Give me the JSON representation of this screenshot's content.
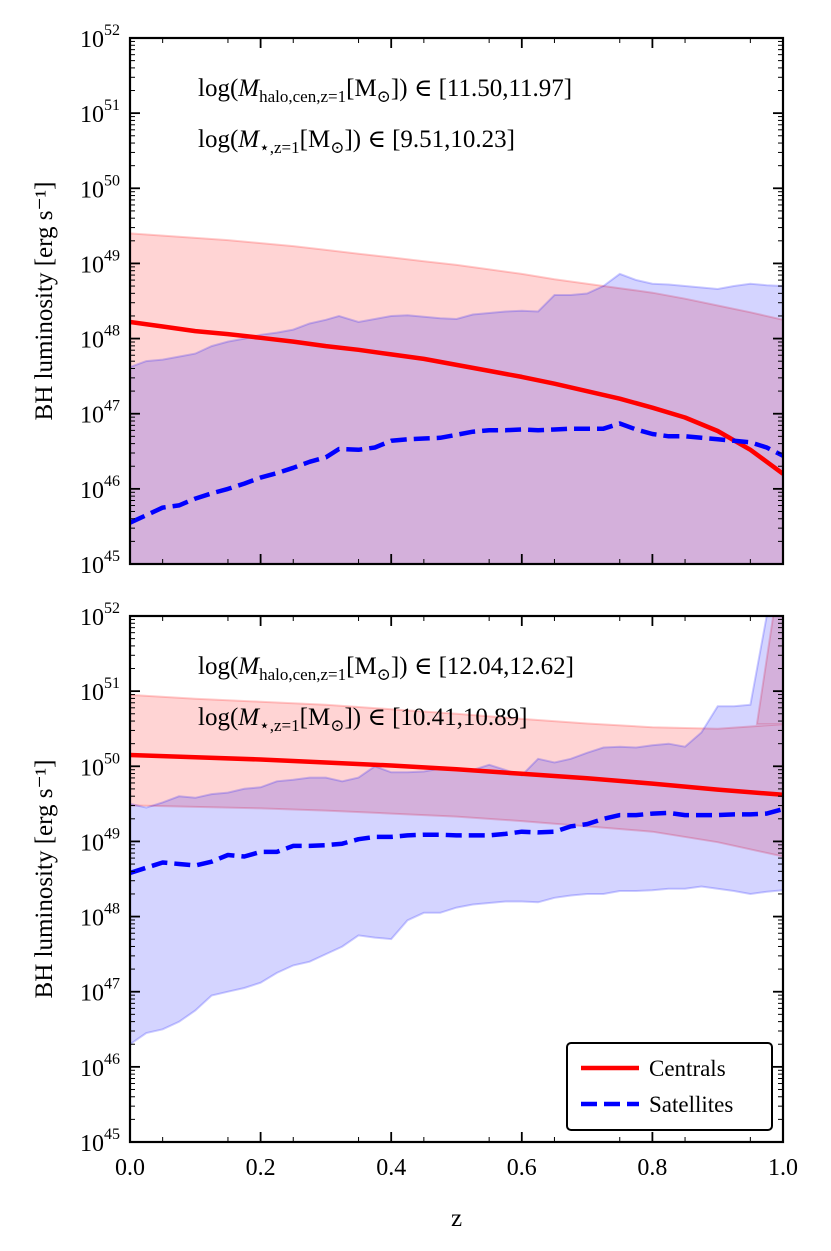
{
  "chart_data": [
    {
      "type": "area",
      "panel": "top",
      "ylabel": "BH luminosity [erg s⁻¹]",
      "xlabel": "",
      "xlim": [
        0.0,
        1.0
      ],
      "ylim_log10": [
        45,
        52
      ],
      "yscale": "log",
      "y_tick_labels": [
        {
          "base": "10",
          "exp": "45"
        },
        {
          "base": "10",
          "exp": "46"
        },
        {
          "base": "10",
          "exp": "47"
        },
        {
          "base": "10",
          "exp": "48"
        },
        {
          "base": "10",
          "exp": "49"
        },
        {
          "base": "10",
          "exp": "50"
        },
        {
          "base": "10",
          "exp": "51"
        },
        {
          "base": "10",
          "exp": "52"
        }
      ],
      "annotations": [
        {
          "prefix": "log(",
          "var": "M",
          "sub": "halo,cen,z=1",
          "unit": "M",
          "unit_sub": "⊙",
          "suffix": ") ∈ [11.50,11.97]"
        },
        {
          "prefix": "log(",
          "var": "M",
          "sub": "⋆,z=1",
          "unit": "M",
          "unit_sub": "⊙",
          "suffix": ") ∈ [9.51,10.23]"
        }
      ],
      "series": [
        {
          "name": "Centrals",
          "color": "#ff0000",
          "style": "solid",
          "x": [
            0,
            0.05,
            0.1,
            0.15,
            0.2,
            0.25,
            0.3,
            0.35,
            0.4,
            0.45,
            0.5,
            0.55,
            0.6,
            0.65,
            0.7,
            0.75,
            0.8,
            0.85,
            0.9,
            0.95,
            1.0
          ],
          "log10_y": [
            48.22,
            48.16,
            48.1,
            48.06,
            48.01,
            47.96,
            47.9,
            47.85,
            47.79,
            47.73,
            47.65,
            47.57,
            47.49,
            47.4,
            47.3,
            47.2,
            47.08,
            46.95,
            46.77,
            46.52,
            46.2
          ],
          "band_lower_log10": [
            45,
            45,
            45,
            45,
            45,
            45,
            45,
            45,
            45,
            45,
            45,
            45,
            45,
            45,
            45,
            45,
            45,
            45,
            45,
            45,
            45
          ],
          "band_upper_log10": [
            49.4,
            49.37,
            49.34,
            49.31,
            49.27,
            49.23,
            49.18,
            49.13,
            49.08,
            49.03,
            48.98,
            48.92,
            48.86,
            48.79,
            48.73,
            48.67,
            48.61,
            48.53,
            48.44,
            48.35,
            48.25
          ],
          "band_color": "#ff0000"
        },
        {
          "name": "Satellites",
          "color": "#0000ff",
          "style": "dashed",
          "x": [
            0,
            0.025,
            0.05,
            0.075,
            0.1,
            0.125,
            0.15,
            0.175,
            0.2,
            0.225,
            0.25,
            0.275,
            0.3,
            0.32,
            0.35,
            0.375,
            0.4,
            0.425,
            0.45,
            0.475,
            0.5,
            0.525,
            0.55,
            0.575,
            0.6,
            0.625,
            0.65,
            0.675,
            0.7,
            0.725,
            0.75,
            0.775,
            0.8,
            0.825,
            0.85,
            0.875,
            0.9,
            0.925,
            0.95,
            0.975,
            1.0
          ],
          "log10_y": [
            45.55,
            45.65,
            45.75,
            45.78,
            45.87,
            45.94,
            46.0,
            46.07,
            46.15,
            46.21,
            46.28,
            46.36,
            46.42,
            46.53,
            46.52,
            46.55,
            46.64,
            46.66,
            46.67,
            46.68,
            46.72,
            46.76,
            46.78,
            46.78,
            46.79,
            46.78,
            46.79,
            46.8,
            46.8,
            46.8,
            46.87,
            46.79,
            46.73,
            46.7,
            46.7,
            46.68,
            46.66,
            46.64,
            46.62,
            46.55,
            46.44
          ],
          "band_lower_log10": [
            45,
            45,
            45,
            45,
            45,
            45,
            45,
            45,
            45,
            45,
            45,
            45,
            45,
            45,
            45,
            45,
            45,
            45,
            45,
            45,
            45,
            45,
            45,
            45,
            45,
            45,
            45,
            45,
            45,
            45,
            45,
            45,
            45,
            45,
            45,
            45,
            45,
            45,
            45,
            45,
            45
          ],
          "band_upper_log10": [
            47.62,
            47.7,
            47.72,
            47.76,
            47.8,
            47.9,
            47.96,
            48.0,
            48.05,
            48.08,
            48.12,
            48.2,
            48.25,
            48.3,
            48.22,
            48.26,
            48.3,
            48.31,
            48.29,
            48.27,
            48.26,
            48.32,
            48.34,
            48.36,
            48.37,
            48.36,
            48.58,
            48.58,
            48.6,
            48.7,
            48.86,
            48.78,
            48.73,
            48.72,
            48.7,
            48.68,
            48.66,
            48.7,
            48.73,
            48.71,
            48.7
          ],
          "band_color": "#0000ff"
        }
      ]
    },
    {
      "type": "area",
      "panel": "bottom",
      "ylabel": "BH luminosity [erg s⁻¹]",
      "xlabel": "z",
      "xlim": [
        0.0,
        1.0
      ],
      "ylim_log10": [
        45,
        52
      ],
      "yscale": "log",
      "x_ticks": [
        "0.0",
        "0.2",
        "0.4",
        "0.6",
        "0.8",
        "1.0"
      ],
      "y_tick_labels": [
        {
          "base": "10",
          "exp": "45"
        },
        {
          "base": "10",
          "exp": "46"
        },
        {
          "base": "10",
          "exp": "47"
        },
        {
          "base": "10",
          "exp": "48"
        },
        {
          "base": "10",
          "exp": "49"
        },
        {
          "base": "10",
          "exp": "50"
        },
        {
          "base": "10",
          "exp": "51"
        },
        {
          "base": "10",
          "exp": "52"
        }
      ],
      "annotations": [
        {
          "prefix": "log(",
          "var": "M",
          "sub": "halo,cen,z=1",
          "unit": "M",
          "unit_sub": "⊙",
          "suffix": ") ∈ [12.04,12.62]"
        },
        {
          "prefix": "log(",
          "var": "M",
          "sub": "⋆,z=1",
          "unit": "M",
          "unit_sub": "⊙",
          "suffix": ") ∈ [10.41,10.89]"
        }
      ],
      "legend": {
        "position": "lower-right",
        "entries": [
          "Centrals",
          "Satellites"
        ]
      },
      "series": [
        {
          "name": "Centrals",
          "color": "#ff0000",
          "style": "solid",
          "x": [
            0,
            0.1,
            0.2,
            0.3,
            0.4,
            0.5,
            0.6,
            0.7,
            0.8,
            0.9,
            1.0
          ],
          "log10_y": [
            50.15,
            50.12,
            50.09,
            50.05,
            50.01,
            49.96,
            49.9,
            49.84,
            49.77,
            49.69,
            49.62
          ],
          "band_lower_log10": [
            49.48,
            49.46,
            49.44,
            49.41,
            49.37,
            49.33,
            49.27,
            49.2,
            49.13,
            48.99,
            48.8
          ],
          "band_upper_log10": [
            50.95,
            50.9,
            50.86,
            50.82,
            50.76,
            50.7,
            50.63,
            50.57,
            50.52,
            50.5,
            50.56
          ],
          "band_upper_tail": {
            "x": [
              0.96,
              0.985,
              1.0
            ],
            "log10_y": [
              50.56,
              52.0,
              52.0
            ]
          },
          "band_color": "#ff0000"
        },
        {
          "name": "Satellites",
          "color": "#0000ff",
          "style": "dashed",
          "x": [
            0,
            0.025,
            0.05,
            0.075,
            0.1,
            0.125,
            0.15,
            0.175,
            0.2,
            0.225,
            0.25,
            0.275,
            0.3,
            0.325,
            0.35,
            0.375,
            0.4,
            0.425,
            0.45,
            0.475,
            0.5,
            0.525,
            0.55,
            0.575,
            0.6,
            0.625,
            0.65,
            0.675,
            0.7,
            0.725,
            0.75,
            0.775,
            0.8,
            0.825,
            0.85,
            0.875,
            0.9,
            0.925,
            0.95,
            0.975,
            1.0
          ],
          "log10_y": [
            48.58,
            48.65,
            48.72,
            48.7,
            48.68,
            48.73,
            48.82,
            48.8,
            48.86,
            48.86,
            48.94,
            48.94,
            48.95,
            48.97,
            49.03,
            49.06,
            49.06,
            49.08,
            49.09,
            49.09,
            49.08,
            49.08,
            49.08,
            49.1,
            49.13,
            49.12,
            49.13,
            49.2,
            49.23,
            49.3,
            49.35,
            49.35,
            49.37,
            49.38,
            49.35,
            49.35,
            49.35,
            49.36,
            49.36,
            49.37,
            49.43
          ],
          "band_lower_log10": [
            46.3,
            46.45,
            46.5,
            46.6,
            46.75,
            46.95,
            47.0,
            47.05,
            47.12,
            47.25,
            47.35,
            47.4,
            47.5,
            47.6,
            47.75,
            47.72,
            47.7,
            47.95,
            48.05,
            48.05,
            48.12,
            48.16,
            48.18,
            48.2,
            48.2,
            48.19,
            48.25,
            48.28,
            48.3,
            48.3,
            48.34,
            48.34,
            48.35,
            48.37,
            48.37,
            48.4,
            48.37,
            48.34,
            48.3,
            48.33,
            48.35
          ],
          "band_upper_log10": [
            49.5,
            49.45,
            49.52,
            49.6,
            49.58,
            49.63,
            49.65,
            49.7,
            49.72,
            49.8,
            49.82,
            49.85,
            49.85,
            49.8,
            49.85,
            50.0,
            49.92,
            49.92,
            49.93,
            49.97,
            49.97,
            49.95,
            50.02,
            49.95,
            49.88,
            50.1,
            50.05,
            50.1,
            50.18,
            50.25,
            50.26,
            50.25,
            50.28,
            50.3,
            50.26,
            50.45,
            50.8,
            50.8,
            50.82,
            52.0,
            52.0
          ],
          "band_color": "#0000ff"
        }
      ]
    }
  ]
}
